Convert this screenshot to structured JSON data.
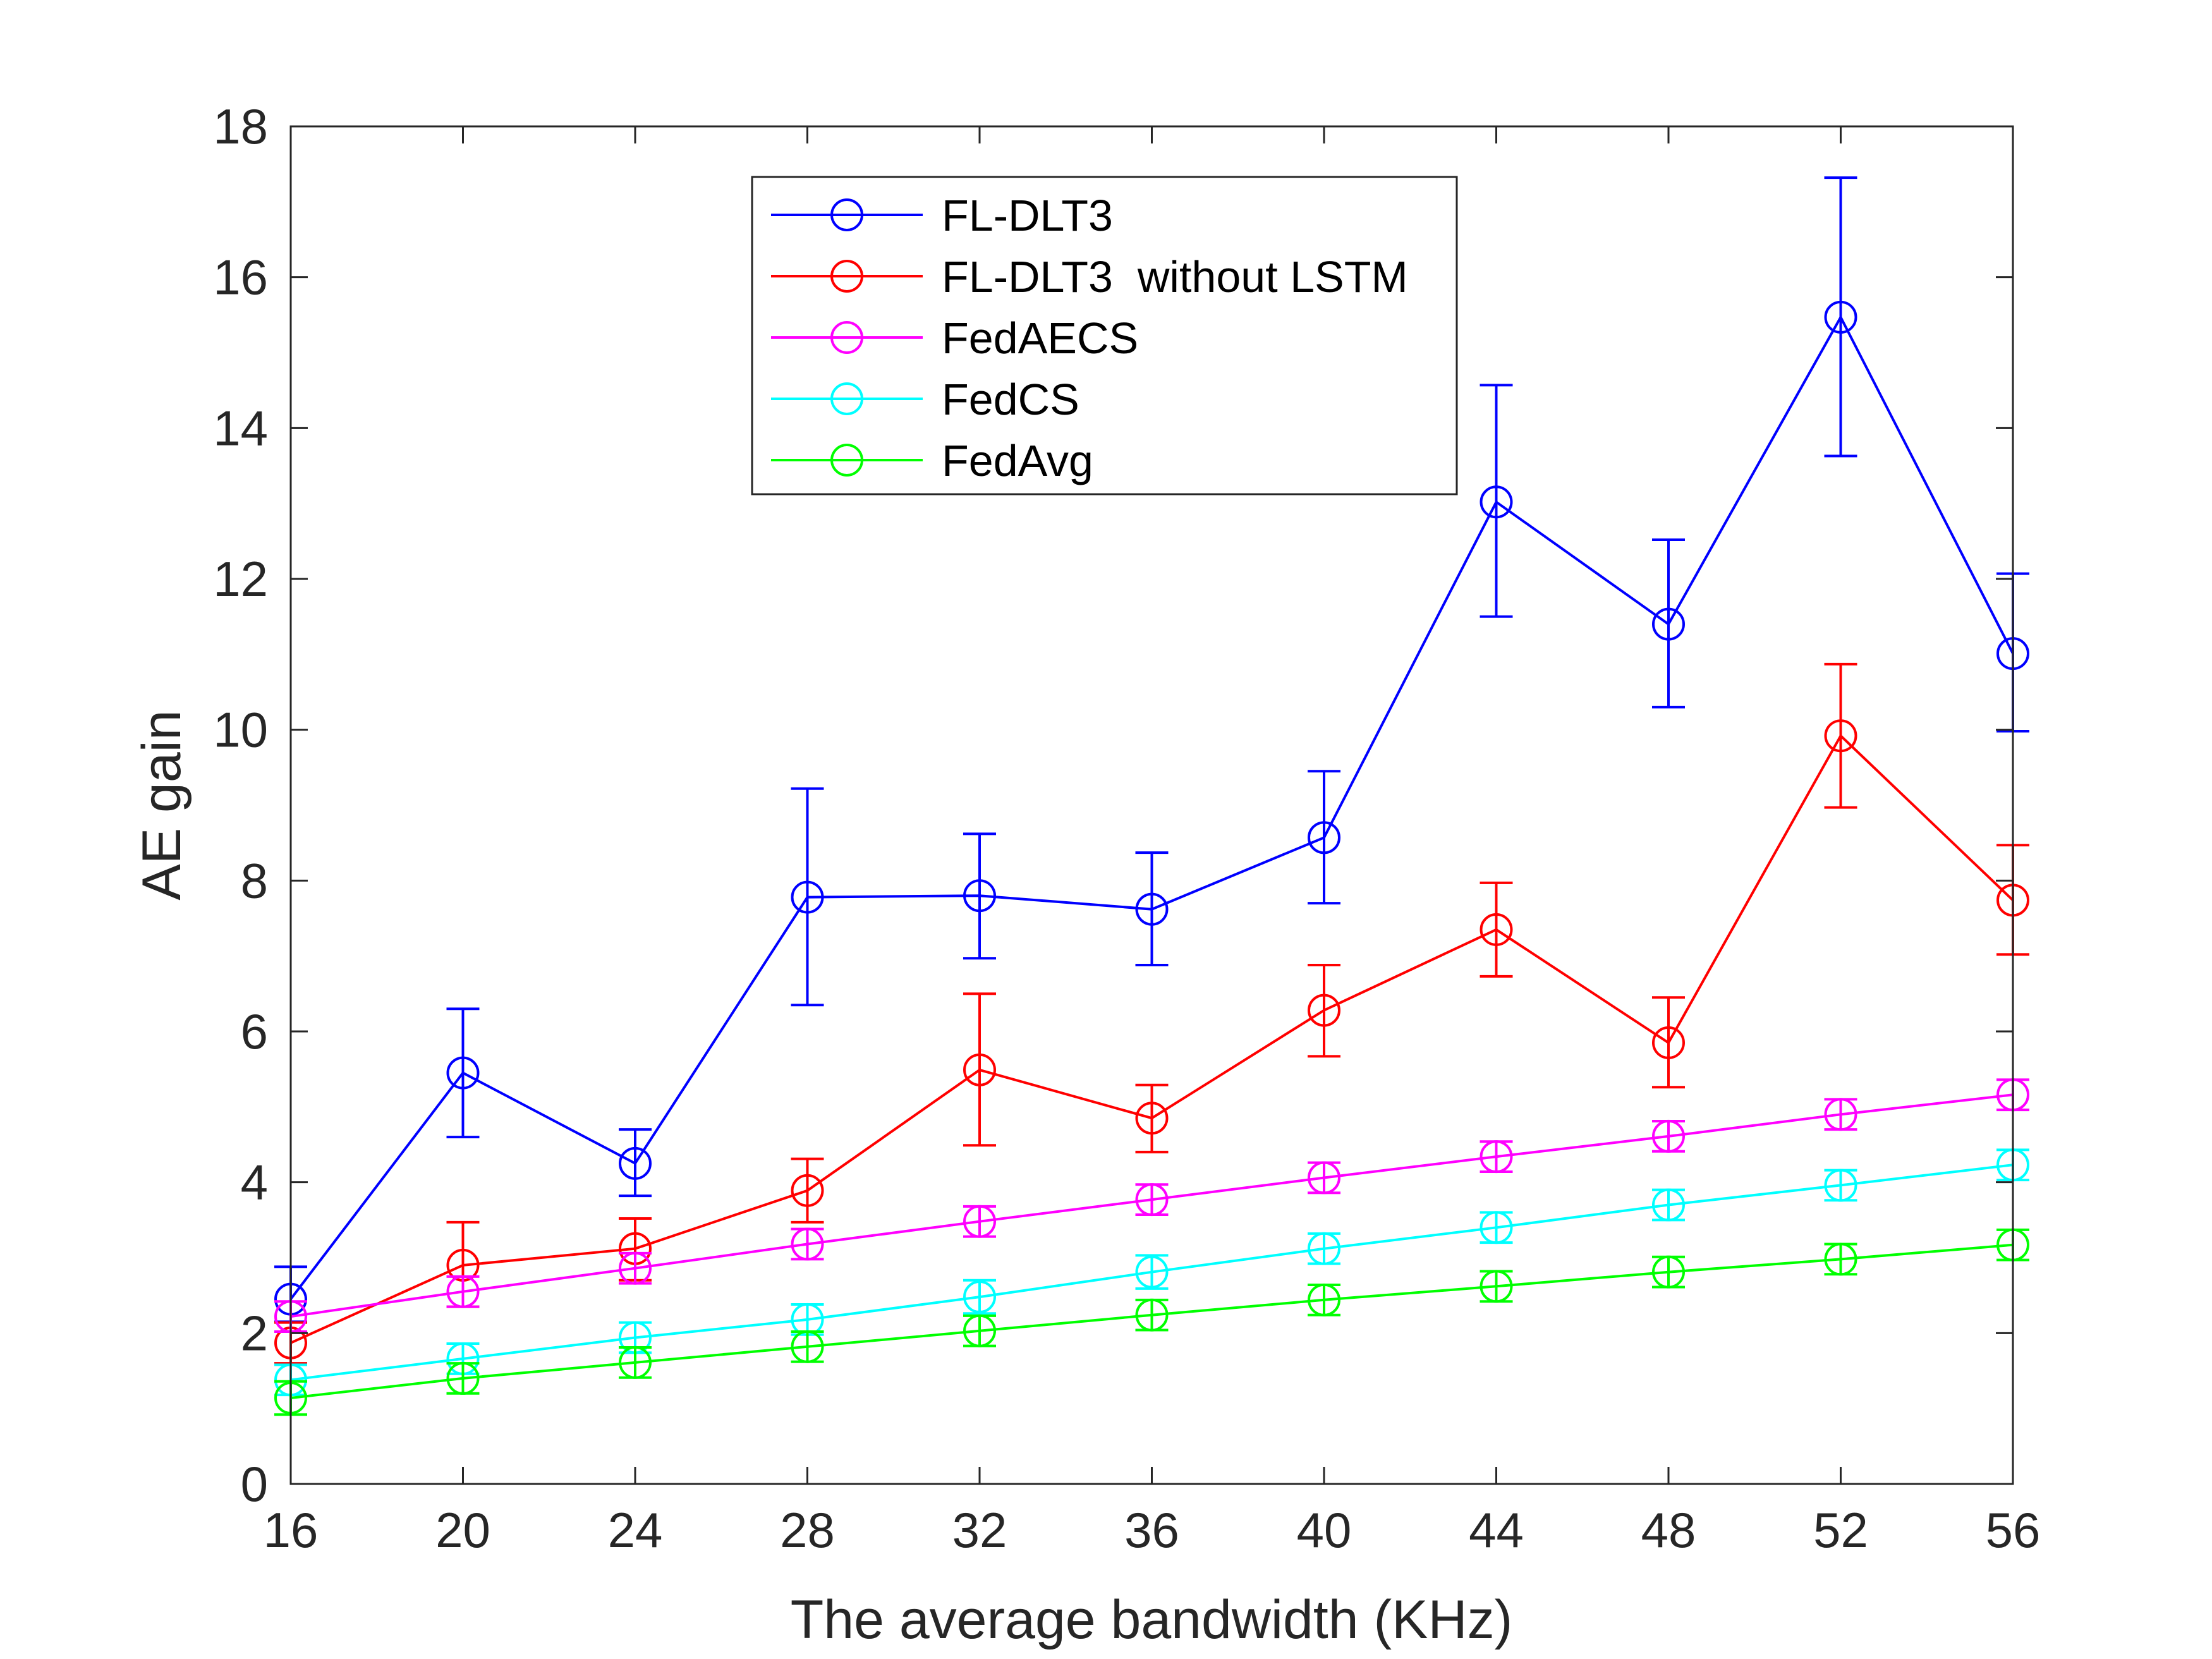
{
  "chart_data": {
    "type": "line",
    "title": "",
    "xlabel": "The average bandwidth (KHz)",
    "ylabel": "AE gain",
    "xlim": [
      16,
      56
    ],
    "ylim": [
      0,
      18
    ],
    "x": [
      16,
      20,
      24,
      28,
      32,
      36,
      40,
      44,
      48,
      52,
      56
    ],
    "xticks": [
      16,
      20,
      24,
      28,
      32,
      36,
      40,
      44,
      48,
      52,
      56
    ],
    "yticks": [
      0,
      2,
      4,
      6,
      8,
      10,
      12,
      14,
      16,
      18
    ],
    "grid": false,
    "legend_position": "top-center",
    "series": [
      {
        "name": "FL-DLT3",
        "color": "#0000ff",
        "values": [
          2.45,
          5.45,
          4.25,
          7.78,
          7.8,
          7.62,
          8.57,
          13.02,
          11.4,
          15.47,
          11.01
        ],
        "err_low": [
          2.15,
          4.6,
          3.82,
          6.35,
          6.97,
          6.88,
          7.7,
          11.5,
          10.3,
          13.63,
          9.98
        ],
        "err_high": [
          2.88,
          6.3,
          4.7,
          9.22,
          8.62,
          8.37,
          9.45,
          14.57,
          12.52,
          17.32,
          12.07
        ]
      },
      {
        "name": "FL-DLT3  without LSTM",
        "color": "#ff0000",
        "values": [
          1.87,
          2.9,
          3.12,
          3.89,
          5.49,
          4.85,
          6.28,
          7.35,
          5.85,
          9.92,
          7.74
        ],
        "err_low": [
          1.6,
          2.35,
          2.7,
          3.47,
          4.49,
          4.4,
          5.67,
          6.73,
          5.26,
          8.97,
          7.02
        ],
        "err_high": [
          2.14,
          3.47,
          3.52,
          4.31,
          6.5,
          5.29,
          6.88,
          7.97,
          6.45,
          10.87,
          8.47
        ]
      },
      {
        "name": "FedAECS",
        "color": "#ff00ff",
        "values": [
          2.22,
          2.55,
          2.86,
          3.18,
          3.48,
          3.77,
          4.06,
          4.34,
          4.61,
          4.9,
          5.16
        ],
        "err_low": [
          2.02,
          2.35,
          2.66,
          2.98,
          3.28,
          3.57,
          3.86,
          4.14,
          4.41,
          4.7,
          4.96
        ],
        "err_high": [
          2.42,
          2.75,
          3.06,
          3.38,
          3.68,
          3.97,
          4.26,
          4.54,
          4.81,
          5.1,
          5.36
        ]
      },
      {
        "name": "FedCS",
        "color": "#00ffff",
        "values": [
          1.38,
          1.66,
          1.94,
          2.18,
          2.48,
          2.81,
          3.12,
          3.4,
          3.7,
          3.96,
          4.23
        ],
        "err_low": [
          1.18,
          1.46,
          1.74,
          1.98,
          2.26,
          2.59,
          2.92,
          3.2,
          3.5,
          3.76,
          4.03
        ],
        "err_high": [
          1.58,
          1.86,
          2.14,
          2.38,
          2.7,
          3.03,
          3.32,
          3.6,
          3.9,
          4.16,
          4.43
        ]
      },
      {
        "name": "FedAvg",
        "color": "#00ff00",
        "values": [
          1.14,
          1.4,
          1.61,
          1.82,
          2.03,
          2.24,
          2.44,
          2.62,
          2.81,
          2.98,
          3.17
        ],
        "err_low": [
          0.92,
          1.2,
          1.41,
          1.62,
          1.83,
          2.04,
          2.24,
          2.42,
          2.61,
          2.78,
          2.97
        ],
        "err_high": [
          1.36,
          1.6,
          1.81,
          2.02,
          2.23,
          2.44,
          2.64,
          2.82,
          3.01,
          3.18,
          3.37
        ]
      }
    ]
  }
}
